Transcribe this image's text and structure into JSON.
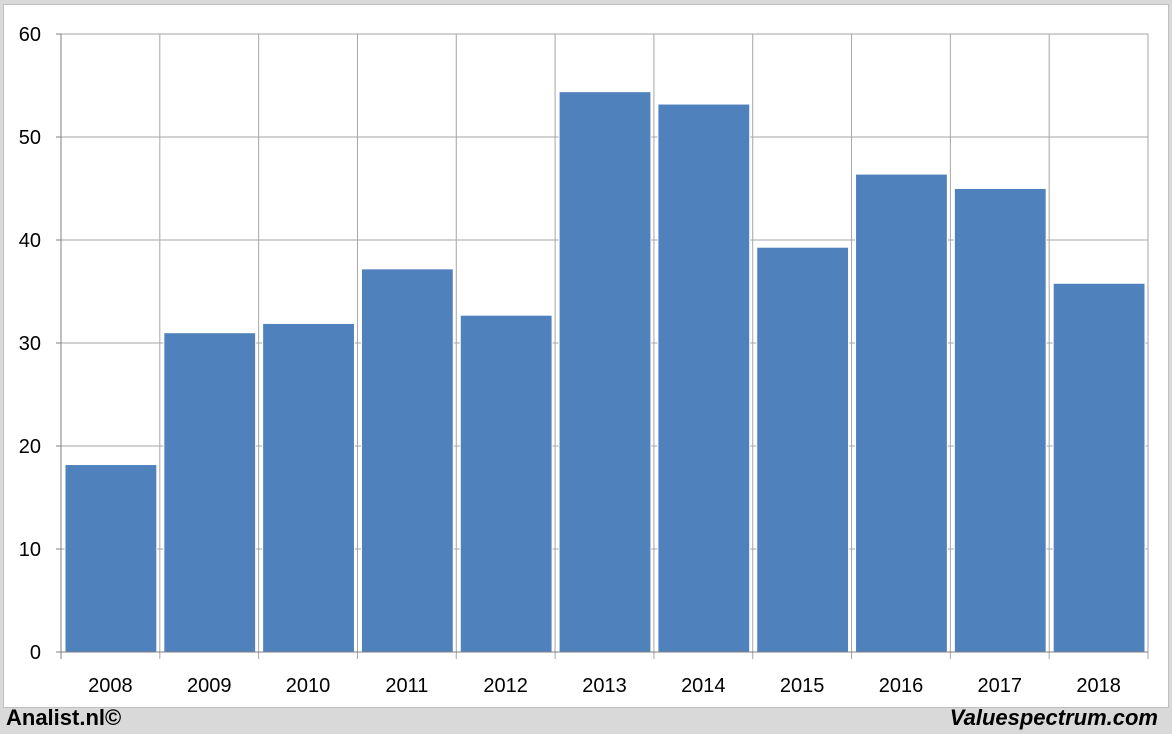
{
  "chart_data": {
    "type": "bar",
    "categories": [
      "2008",
      "2009",
      "2010",
      "2011",
      "2012",
      "2013",
      "2014",
      "2015",
      "2016",
      "2017",
      "2018"
    ],
    "values": [
      18.2,
      31.0,
      31.9,
      37.2,
      32.7,
      54.4,
      53.2,
      39.3,
      46.4,
      45.0,
      35.8
    ],
    "title": "",
    "xlabel": "",
    "ylabel": "",
    "ylim": [
      0,
      60
    ],
    "yticks": [
      "0",
      "10",
      "20",
      "30",
      "40",
      "50",
      "60"
    ],
    "grid": true,
    "bar_color": "#4f81bd",
    "grid_color": "#a6a6a6"
  },
  "footer": {
    "left": "Analist.nl©",
    "right": "Valuespectrum.com"
  }
}
